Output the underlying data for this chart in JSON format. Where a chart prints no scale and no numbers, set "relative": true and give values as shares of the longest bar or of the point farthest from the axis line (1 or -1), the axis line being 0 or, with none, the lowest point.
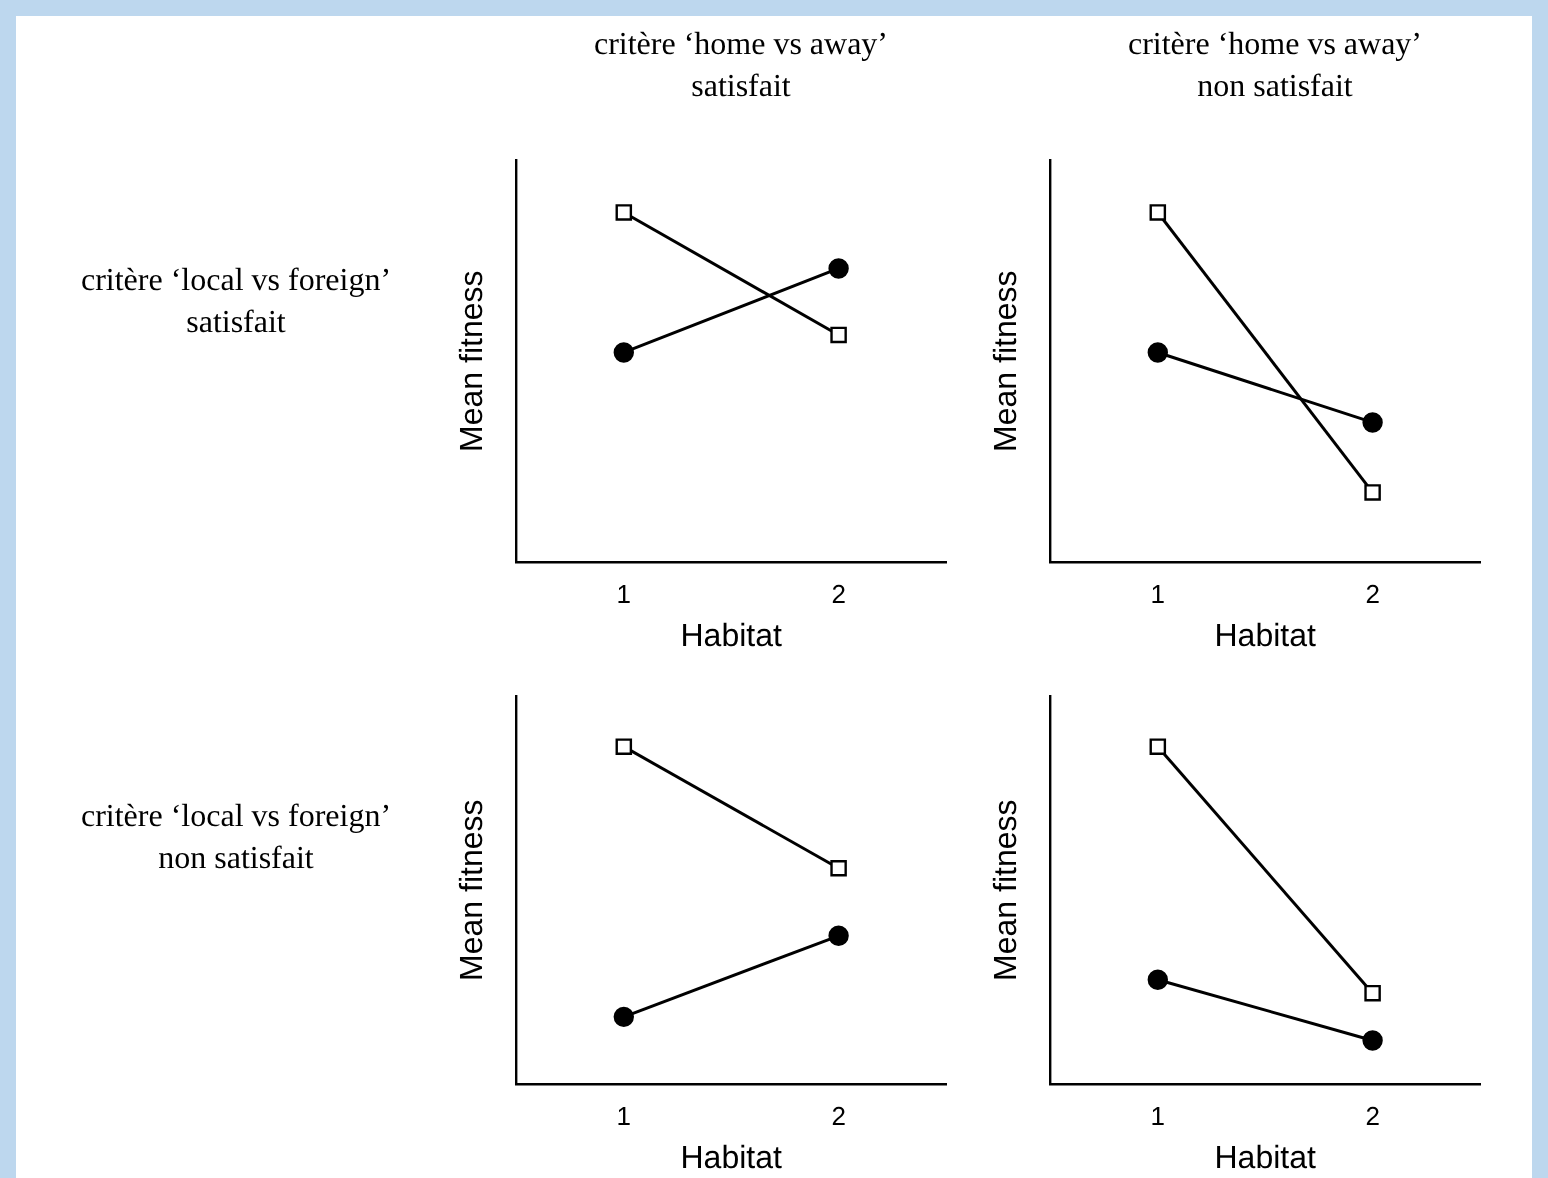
{
  "chart_data": [
    {
      "type": "line",
      "title": "critère ‘home vs away’ satisfait",
      "annotations": [
        "critère ‘local vs foreign’ satisfait"
      ],
      "xlabel": "Habitat",
      "ylabel": "Mean fitness",
      "categories": [
        "1",
        "2"
      ],
      "relative": true,
      "grid": false,
      "legend": false,
      "series": [
        {
          "color": "#000000",
          "marker": "square",
          "values": [
            1,
            0.65
          ]
        },
        {
          "color": "#000000",
          "marker": "circle",
          "values": [
            0.6,
            0.84
          ]
        }
      ]
    },
    {
      "type": "line",
      "title": "critère ‘home vs away’ non satisfait",
      "xlabel": "Habitat",
      "ylabel": "Mean fitness",
      "categories": [
        "1",
        "2"
      ],
      "relative": true,
      "grid": false,
      "legend": false,
      "series": [
        {
          "color": "#000000",
          "marker": "square",
          "values": [
            1,
            0.2
          ]
        },
        {
          "color": "#000000",
          "marker": "circle",
          "values": [
            0.6,
            0.4
          ]
        }
      ]
    },
    {
      "type": "line",
      "annotations": [
        "critère ‘local vs foreign’ non satisfait"
      ],
      "xlabel": "Habitat",
      "ylabel": "Mean fitness",
      "categories": [
        "1",
        "2"
      ],
      "relative": true,
      "grid": false,
      "legend": false,
      "series": [
        {
          "color": "#000000",
          "marker": "square",
          "values": [
            1,
            0.64
          ]
        },
        {
          "color": "#000000",
          "marker": "circle",
          "values": [
            0.2,
            0.44
          ]
        }
      ]
    },
    {
      "type": "line",
      "xlabel": "Habitat",
      "ylabel": "Mean fitness",
      "categories": [
        "1",
        "2"
      ],
      "relative": true,
      "grid": false,
      "legend": false,
      "series": [
        {
          "color": "#000000",
          "marker": "square",
          "values": [
            1,
            0.27
          ]
        },
        {
          "color": "#000000",
          "marker": "circle",
          "values": [
            0.31,
            0.13
          ]
        }
      ]
    }
  ]
}
